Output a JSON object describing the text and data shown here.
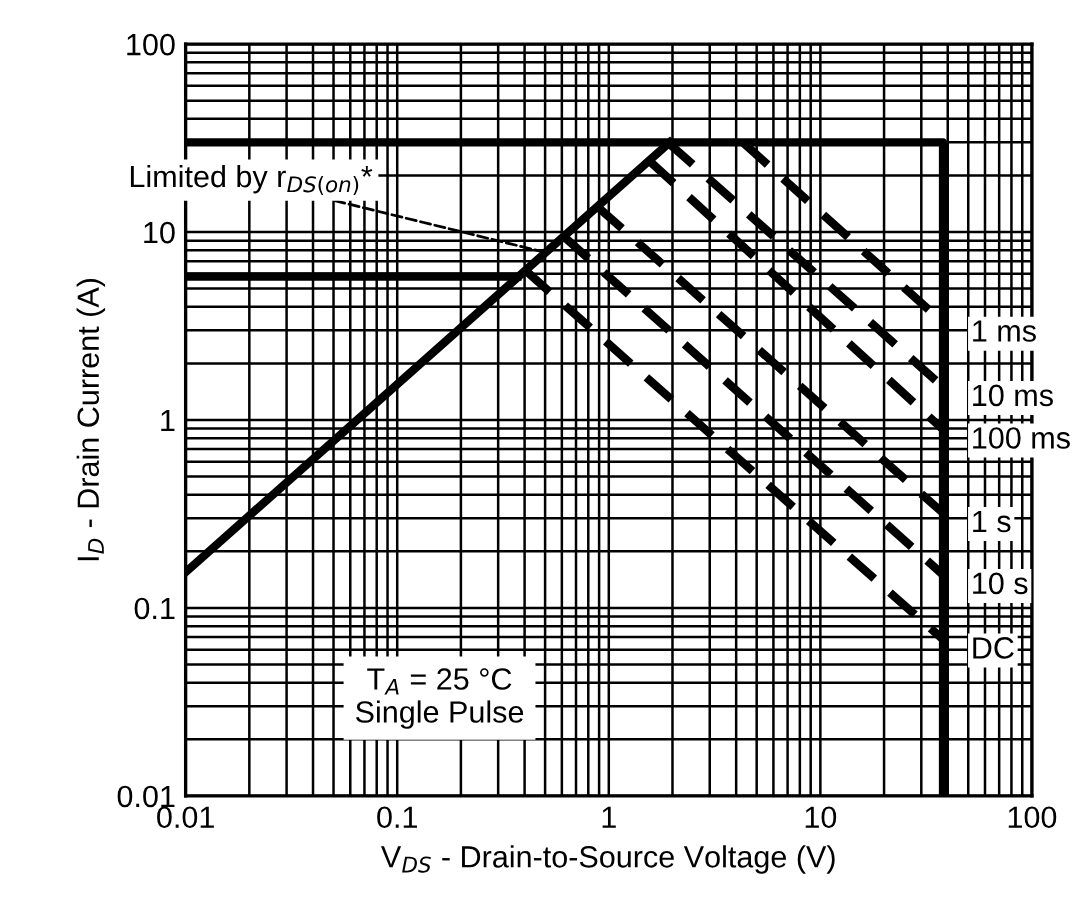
{
  "chart_data": {
    "type": "line",
    "xlabel": "V$_{DS}$ - Drain-to-Source Voltage (V)",
    "ylabel": "I$_{D}$ - Drain Current (A)",
    "log": "xy",
    "xlim": [
      0.01,
      100
    ],
    "ylim": [
      0.01,
      100
    ],
    "xticks": [
      0.01,
      0.1,
      1,
      10,
      100
    ],
    "yticks": [
      0.01,
      0.1,
      1,
      10,
      100
    ],
    "grid": true,
    "legend": false,
    "marker": "none",
    "series": [
      {
        "color": "#000000",
        "line_style": "solid",
        "x": [
          0.01,
          1.94
        ],
        "values": [
          0.155,
          30
        ]
      },
      {
        "color": "#000000",
        "line_style": "solid",
        "x": [
          0.01,
          38,
          38
        ],
        "values": [
          30,
          30,
          0.01
        ]
      },
      {
        "color": "#000000",
        "line_style": "solid",
        "x": [
          0.01,
          0.37
        ],
        "values": [
          5.8,
          5.8
        ]
      },
      {
        "name": "1 ms",
        "color": "#000000",
        "line_style": "dashed",
        "x": [
          4.3,
          38
        ],
        "values": [
          30,
          3.3
        ]
      },
      {
        "name": "10 ms",
        "color": "#000000",
        "line_style": "dashed",
        "x": [
          1.9,
          38
        ],
        "values": [
          30,
          1.5
        ]
      },
      {
        "name": "100 ms",
        "color": "#000000",
        "line_style": "dashed",
        "x": [
          1.55,
          38
        ],
        "values": [
          24,
          0.89
        ]
      },
      {
        "name": "1 s",
        "color": "#000000",
        "line_style": "dashed",
        "x": [
          0.88,
          38
        ],
        "values": [
          13.7,
          0.32
        ]
      },
      {
        "name": "10 s",
        "color": "#000000",
        "line_style": "dashed",
        "x": [
          0.61,
          38
        ],
        "values": [
          9.5,
          0.15
        ]
      },
      {
        "name": "DC",
        "color": "#000000",
        "line_style": "dashed",
        "x": [
          0.4,
          38
        ],
        "values": [
          6.3,
          0.068
        ]
      }
    ],
    "annotations": [
      {
        "text": "Limited by r$_{DS(on)}$*",
        "x": 0.5,
        "y": 7.8
      },
      "T$_{A}$ = 25 °C\nSingle Pulse"
    ]
  }
}
